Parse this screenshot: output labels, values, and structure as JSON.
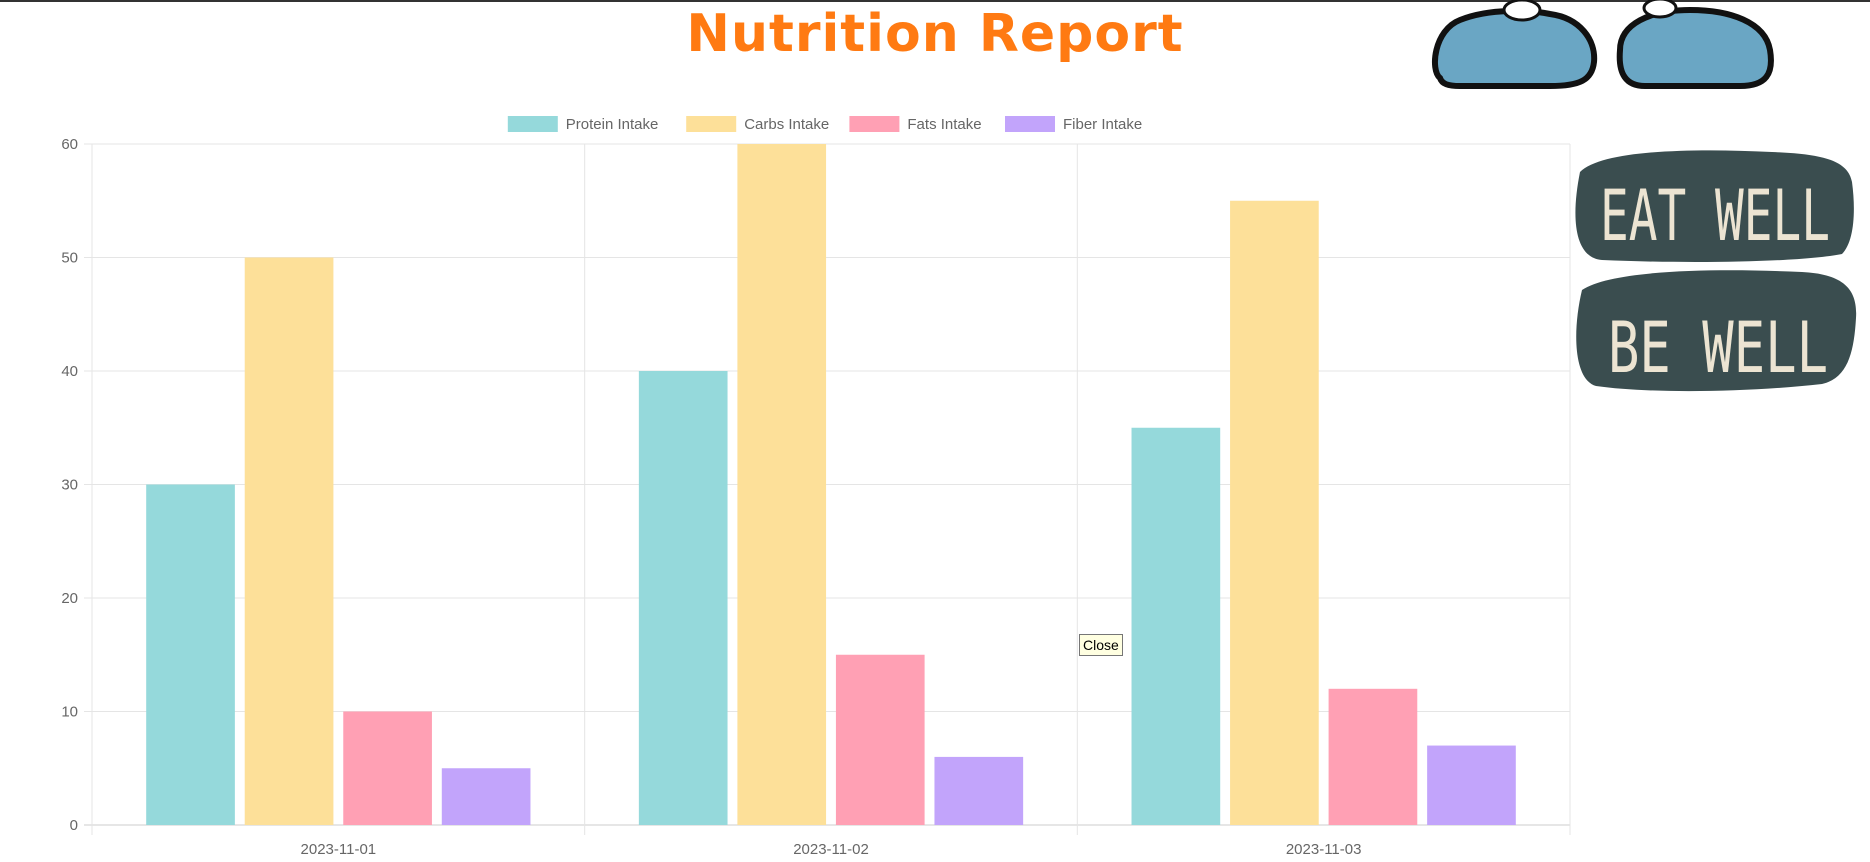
{
  "page": {
    "title": "Nutrition Report",
    "title_color": "#ff7a12",
    "tooltip_text": "Close",
    "sign_text_top": "EAT WELL",
    "sign_text_bottom": "BE WELL"
  },
  "chart_data": {
    "type": "bar",
    "categories": [
      "2023-11-01",
      "2023-11-02",
      "2023-11-03"
    ],
    "series": [
      {
        "name": "Protein Intake",
        "values": [
          30,
          40,
          35
        ],
        "color": "#95d9db"
      },
      {
        "name": "Carbs Intake",
        "values": [
          50,
          60,
          55
        ],
        "color": "#fde099"
      },
      {
        "name": "Fats Intake",
        "values": [
          10,
          15,
          12
        ],
        "color": "#ffa0b4"
      },
      {
        "name": "Fiber Intake",
        "values": [
          5,
          6,
          7
        ],
        "color": "#c2a4fb"
      }
    ],
    "ylim": [
      0,
      60
    ],
    "yticks": [
      0,
      10,
      20,
      30,
      40,
      50,
      60
    ],
    "grid": true,
    "legend": "top-center",
    "title": "",
    "xlabel": "",
    "ylabel": ""
  }
}
